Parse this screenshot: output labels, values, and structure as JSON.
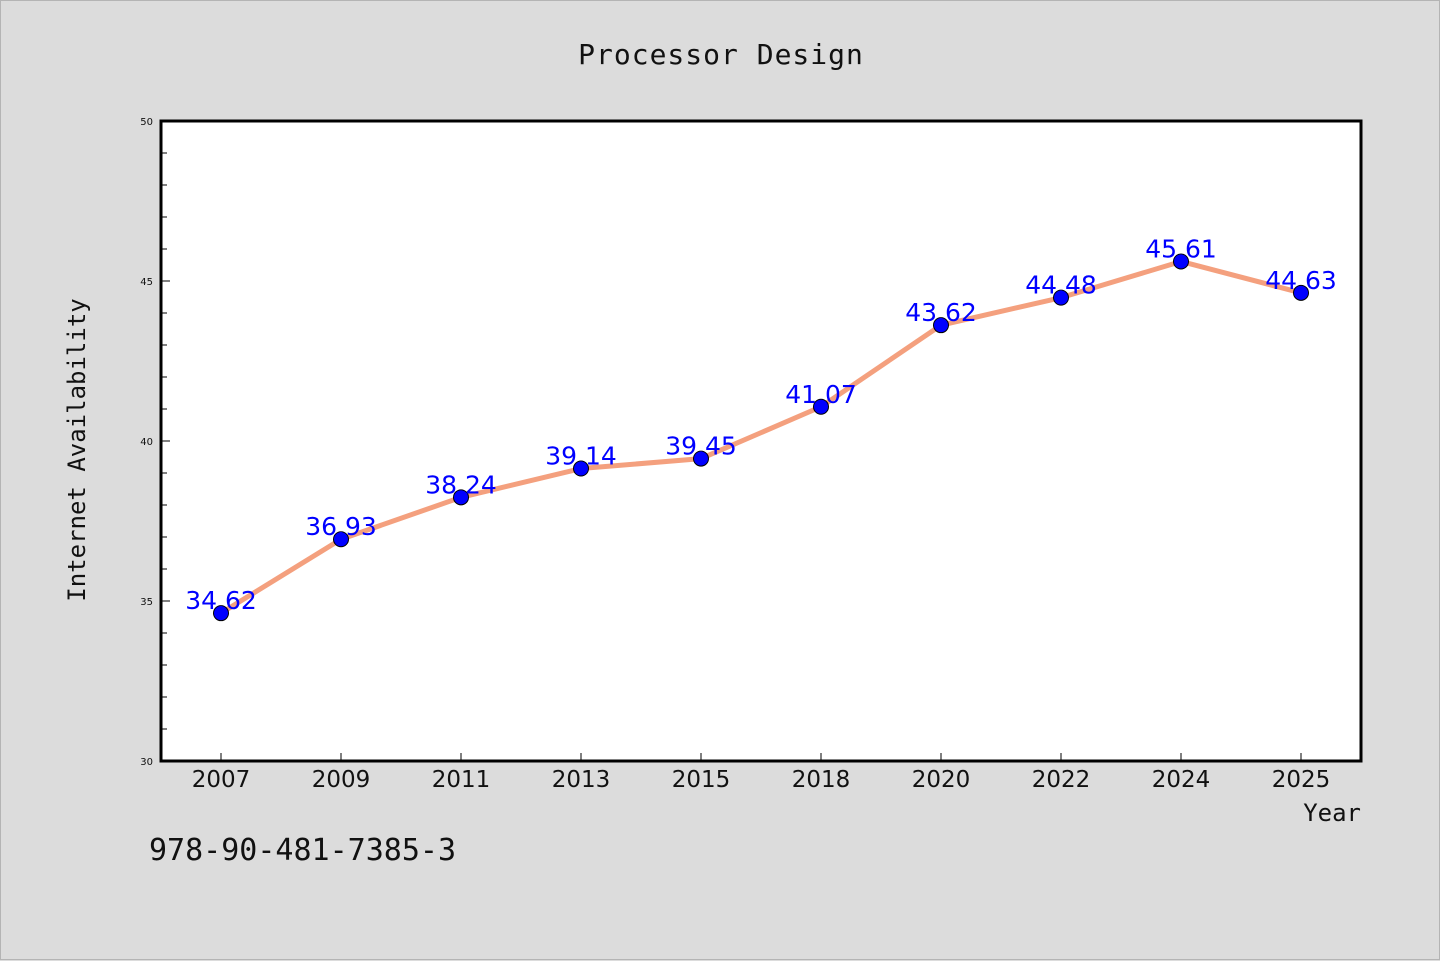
{
  "chart_data": {
    "type": "line",
    "title": "Processor Design",
    "xlabel": "Year",
    "ylabel": "Internet Availability",
    "categories": [
      "2007",
      "2009",
      "2011",
      "2013",
      "2015",
      "2018",
      "2020",
      "2022",
      "2024",
      "2025"
    ],
    "values": [
      34.62,
      36.93,
      38.24,
      39.14,
      39.45,
      41.07,
      43.62,
      44.48,
      45.61,
      44.63
    ],
    "data_labels": [
      "34.62",
      "36.93",
      "38.24",
      "39.14",
      "39.45",
      "41.07",
      "43.62",
      "44.48",
      "45.61",
      "44.63"
    ],
    "ylim": [
      30,
      50
    ],
    "yticks": [
      30,
      35,
      40,
      45,
      50
    ],
    "grid": false,
    "legend": "none",
    "colors": {
      "line": "#f4a07e",
      "marker": "#0000ff",
      "label": "#0000ff",
      "plot_background": "#ffffff",
      "page_background": "#dcdcdc"
    }
  },
  "footnote": "978-90-481-7385-3"
}
